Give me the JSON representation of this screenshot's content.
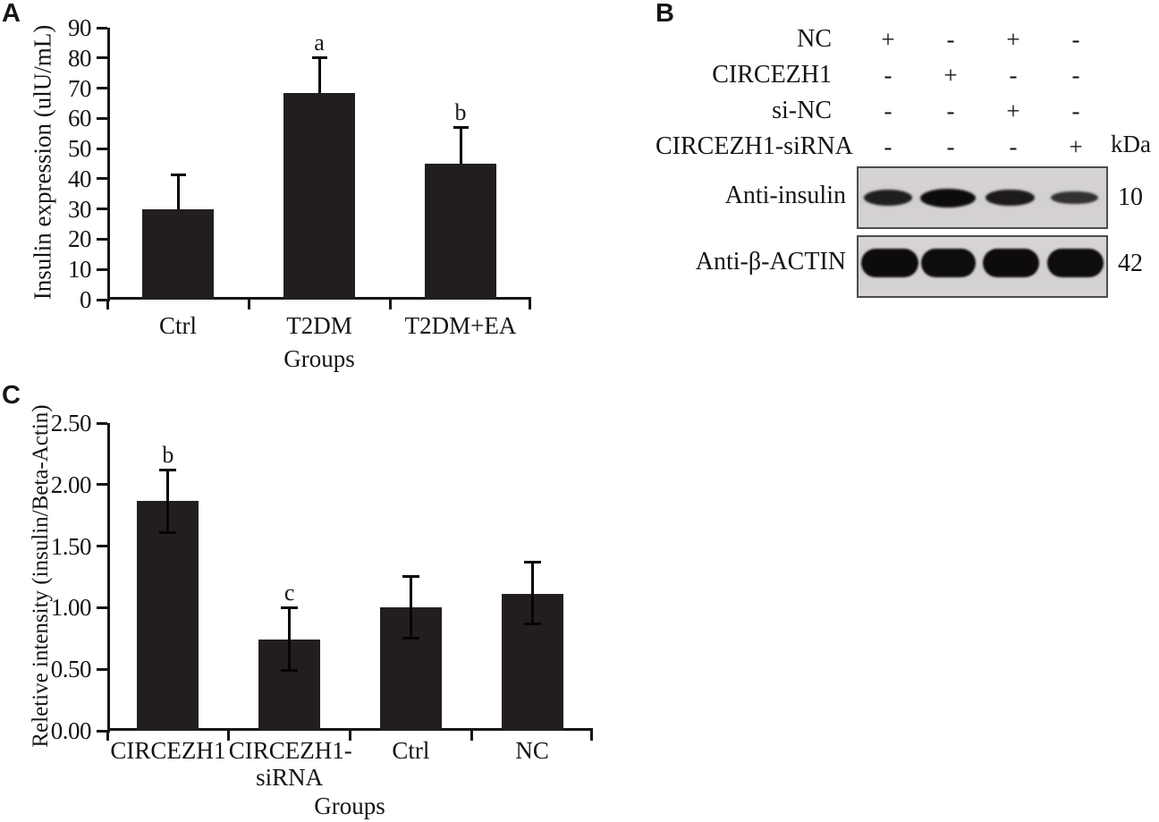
{
  "panels": {
    "a_letter": "A",
    "b_letter": "B",
    "c_letter": "C"
  },
  "chart_data": [
    {
      "id": "panel-a",
      "type": "bar",
      "panel_label": "A",
      "categories": [
        "Ctrl",
        "T2DM",
        "T2DM+EA"
      ],
      "category_lines": [
        [
          "Ctrl"
        ],
        [
          "T2DM"
        ],
        [
          "T2DM+EA"
        ]
      ],
      "values": [
        30,
        68.5,
        45
      ],
      "errors_plus": [
        11,
        11,
        11.5
      ],
      "errors_minus": [
        11,
        11,
        11.5
      ],
      "sig_letters": [
        "",
        "a",
        "b"
      ],
      "xlabel": "Groups",
      "ylabel": "Insulin expression (ulU/mL)",
      "ylim": [
        0,
        90
      ],
      "yticks": [
        0,
        10,
        20,
        30,
        40,
        50,
        60,
        70,
        80,
        90
      ],
      "ytick_labels": [
        "0",
        "10",
        "20",
        "30",
        "40",
        "50",
        "60",
        "70",
        "80",
        "90"
      ],
      "grid": false,
      "legend": "none",
      "bar_color": "#221e1f",
      "error_color": "#050505",
      "error_cap_style": "top"
    },
    {
      "id": "panel-c",
      "type": "bar",
      "panel_label": "C",
      "categories": [
        "CIRCEZH1",
        "CIRCEZH1-siRNA",
        "Ctrl",
        "NC"
      ],
      "category_lines": [
        [
          "CIRCEZH1"
        ],
        [
          "CIRCEZH1-",
          "siRNA"
        ],
        [
          "Ctrl"
        ],
        [
          "NC"
        ]
      ],
      "values": [
        1.87,
        0.74,
        1.0,
        1.11
      ],
      "errors_plus": [
        0.24,
        0.25,
        0.24,
        0.25
      ],
      "errors_minus": [
        0.25,
        0.24,
        0.24,
        0.23
      ],
      "sig_letters": [
        "b",
        "c",
        "",
        ""
      ],
      "xlabel": "Groups",
      "ylabel": "Reletive intensity (insulin/Beta-Actin)",
      "ylim": [
        0,
        2.5
      ],
      "yticks": [
        0,
        0.5,
        1,
        1.5,
        2,
        2.5
      ],
      "ytick_labels": [
        "0.00",
        "0.50",
        "1.00",
        "1.50",
        "2.00",
        "2.50"
      ],
      "grid": false,
      "legend": "none",
      "bar_color": "#221e1f",
      "error_color": "#050505",
      "error_cap_style": "both"
    }
  ],
  "blot_panel": {
    "panel_label": "B",
    "condition_rows": [
      {
        "label": "NC",
        "values": [
          "+",
          "-",
          "+",
          "-"
        ]
      },
      {
        "label": "CIRCEZH1",
        "values": [
          "-",
          "+",
          "-",
          "-"
        ]
      },
      {
        "label": "si-NC",
        "values": [
          "-",
          "-",
          "+",
          "-"
        ]
      },
      {
        "label": "CIRCEZH1-siRNA",
        "values": [
          "-",
          "-",
          "-",
          "+"
        ]
      }
    ],
    "unit_label": "kDa",
    "blots": [
      {
        "antibody": "Anti-insulin",
        "mw_kda": "10",
        "lanes": 4,
        "band_intensity": [
          0.72,
          1.0,
          0.78,
          0.45
        ]
      },
      {
        "antibody": "Anti-β-ACTIN",
        "mw_kda": "42",
        "lanes": 4,
        "band_intensity": [
          1.0,
          0.98,
          1.0,
          0.99
        ]
      }
    ]
  }
}
